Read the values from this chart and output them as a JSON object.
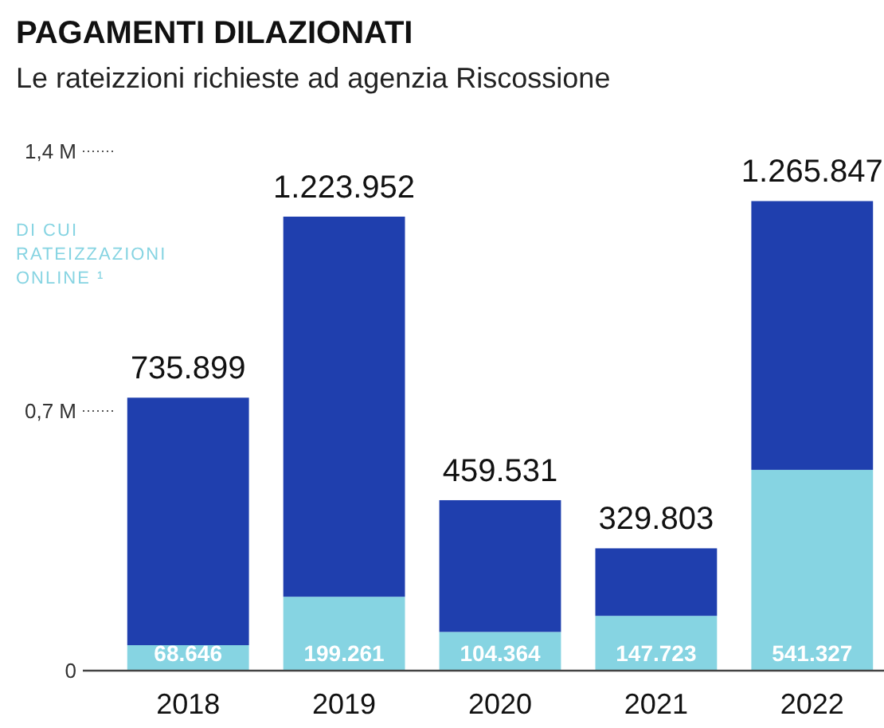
{
  "chart_data": {
    "type": "bar",
    "title": "PAGAMENTI DILAZIONATI",
    "subtitle": "Le rateizzioni richieste ad agenzia Riscossione",
    "categories": [
      "2018",
      "2019",
      "2020",
      "2021",
      "2022"
    ],
    "stacked": true,
    "series": [
      {
        "name": "DI CUI RATEIZZAZIONI ONLINE ¹",
        "color": "#86d4e2",
        "values": [
          68646,
          199261,
          104364,
          147723,
          541327
        ],
        "value_labels": [
          "68.646",
          "199.261",
          "104.364",
          "147.723",
          "541.327"
        ]
      },
      {
        "color": "#1f3fae",
        "values": [
          667253,
          1024691,
          355167,
          182080,
          724520
        ]
      }
    ],
    "totals": [
      "735.899",
      "1.223.952",
      "459.531",
      "329.803",
      "1.265.847"
    ],
    "ylim": [
      0,
      1400000
    ],
    "yticks": [
      0,
      {
        "value": 700000,
        "label": "0,7 M"
      },
      {
        "value": 1400000,
        "label": "1,4 M"
      }
    ],
    "legend": "top left"
  }
}
